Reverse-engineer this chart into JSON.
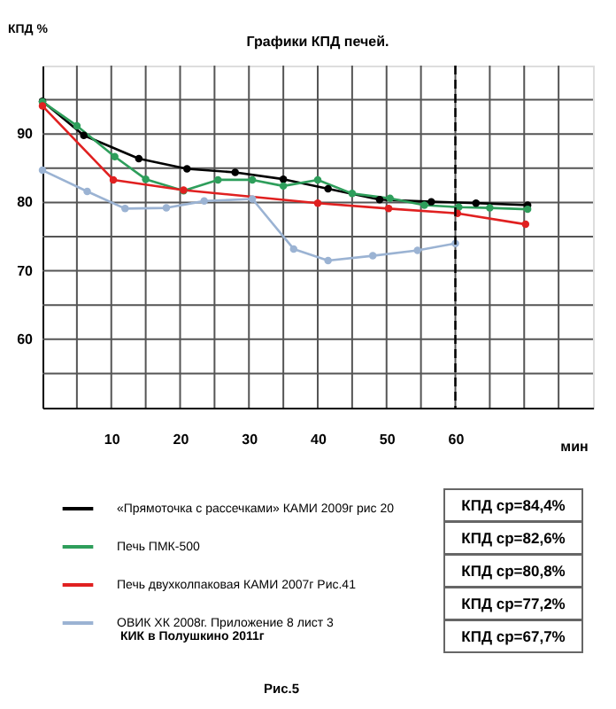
{
  "chart_data": {
    "type": "line",
    "title": "Графики КПД печей.",
    "xlabel": "мин",
    "ylabel": "КПД  %",
    "xlim": [
      0,
      80
    ],
    "xticks": [
      {
        "value": 5,
        "label": null
      },
      10,
      {
        "value": 15,
        "label": null
      },
      20,
      {
        "value": 25,
        "label": null
      },
      30,
      {
        "value": 35,
        "label": null
      },
      40,
      {
        "value": 45,
        "label": null
      },
      50,
      {
        "value": 55,
        "label": null
      },
      60,
      {
        "value": 65,
        "label": null
      },
      {
        "value": 70,
        "label": null
      },
      {
        "value": 75,
        "label": null
      }
    ],
    "ylim": [
      50,
      100
    ],
    "yticks": [
      {
        "value": 55,
        "label": null
      },
      60,
      {
        "value": 65,
        "label": null
      },
      70,
      {
        "value": 75,
        "label": null
      },
      80,
      {
        "value": 85,
        "label": null
      },
      90,
      {
        "value": 95,
        "label": null
      }
    ],
    "grid": true,
    "marker": "circle",
    "legend": "bottom",
    "series": [
      {
        "name": "«Прямоточка  с рассечками»  КАМИ 2009г  рис 20",
        "color": "#000000",
        "x": [
          0,
          6,
          14,
          21,
          28,
          35,
          41.5,
          49,
          56.5,
          63,
          70.5
        ],
        "values": [
          94.8,
          89.8,
          86.4,
          84.9,
          84.4,
          83.4,
          82,
          80.4,
          80.1,
          79.9,
          79.6
        ]
      },
      {
        "name": "Печь  ПМК-500",
        "color": "#2e9e5b",
        "x": [
          0,
          5,
          10.5,
          15,
          20.5,
          25.5,
          30.5,
          35,
          40,
          45,
          50.5,
          55.5,
          60.5,
          65,
          70.5
        ],
        "values": [
          94.7,
          91.2,
          86.7,
          83.4,
          81.7,
          83.3,
          83.3,
          82.4,
          83.3,
          81.3,
          80.6,
          79.6,
          79.3,
          79.2,
          79
        ]
      },
      {
        "name": "Печь двухколпаковая  КАМИ  2007г           Рис.41",
        "color": "#e02020",
        "x": [
          0,
          10.3,
          20.5,
          40,
          50.3,
          60.3,
          70.2
        ],
        "values": [
          94.1,
          83.3,
          81.8,
          79.9,
          79.1,
          78.4,
          76.8
        ]
      },
      {
        "name": "ОВИК   ХК     2008г.  Приложение 8  лист 3",
        "color": "#9bb3d3",
        "x": [
          0,
          6.5,
          12,
          18,
          23.5,
          30.5,
          36.5,
          41.5,
          48,
          54.5,
          60
        ],
        "values": [
          84.7,
          81.6,
          79.1,
          79.2,
          80.2,
          80.5,
          73.2,
          71.5,
          72.2,
          73,
          74
        ]
      }
    ],
    "ref_lines": [
      {
        "axis": "x",
        "value": 60,
        "label": null,
        "color": "#000000",
        "line_style": "dashed"
      }
    ],
    "annotations": [
      "КПД  ср=84,4%",
      "КПД  ср=82,6%",
      "КПД  ср=80,8%",
      "КПД  ср=77,2%",
      "КПД  ср=67,7%",
      "КИК  в Полушкино    2011г",
      "Рис.5"
    ]
  }
}
